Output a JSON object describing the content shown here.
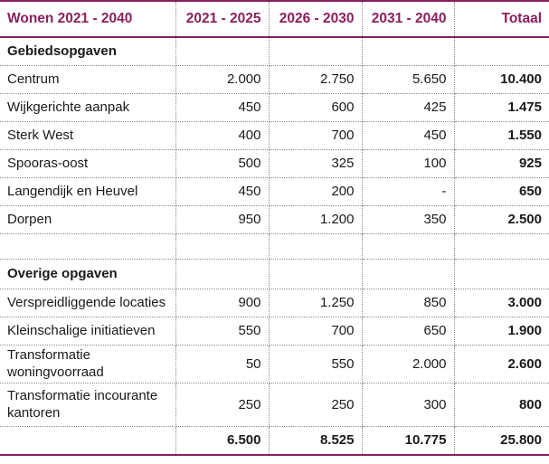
{
  "table": {
    "headers": [
      "Wonen 2021 - 2040",
      "2021 - 2025",
      "2026 - 2030",
      "2031 - 2040",
      "Totaal"
    ],
    "sections": [
      {
        "title": "Gebiedsopgaven",
        "rows": [
          {
            "label": "Centrum",
            "v1": "2.000",
            "v2": "2.750",
            "v3": "5.650",
            "total": "10.400"
          },
          {
            "label": "Wijkgerichte aanpak",
            "v1": "450",
            "v2": "600",
            "v3": "425",
            "total": "1.475"
          },
          {
            "label": "Sterk West",
            "v1": "400",
            "v2": "700",
            "v3": "450",
            "total": "1.550"
          },
          {
            "label": "Spooras-oost",
            "v1": "500",
            "v2": "325",
            "v3": "100",
            "total": "925"
          },
          {
            "label": "Langendijk en Heuvel",
            "v1": "450",
            "v2": "200",
            "v3": "-",
            "total": "650"
          },
          {
            "label": "Dorpen",
            "v1": "950",
            "v2": "1.200",
            "v3": "350",
            "total": "2.500"
          }
        ]
      },
      {
        "title": "Overige opgaven",
        "rows": [
          {
            "label": "Verspreidliggende locaties",
            "v1": "900",
            "v2": "1.250",
            "v3": "850",
            "total": "3.000"
          },
          {
            "label": "Kleinschalige initiatieven",
            "v1": "550",
            "v2": "700",
            "v3": "650",
            "total": "1.900"
          },
          {
            "label": "Transformatie woningvoorraad",
            "v1": "50",
            "v2": "550",
            "v3": "2.000",
            "total": "2.600"
          },
          {
            "label": "Transformatie incourante kantoren",
            "v1": "250",
            "v2": "250",
            "v3": "300",
            "total": "800"
          }
        ]
      }
    ],
    "totals": {
      "label": "",
      "v1": "6.500",
      "v2": "8.525",
      "v3": "10.775",
      "total": "25.800"
    }
  }
}
